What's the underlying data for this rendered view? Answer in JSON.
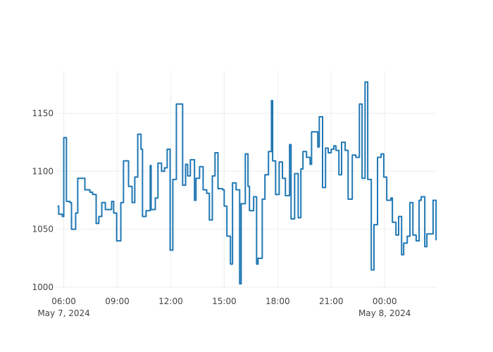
{
  "chart_data": {
    "type": "line",
    "line_shape": "step (hv)",
    "title": "",
    "xlabel": "",
    "ylabel": "",
    "x_origin": "2024-05-07 06:00",
    "x_unit": "minutes since origin",
    "x": [
      -21,
      -17,
      -5,
      0,
      9,
      21,
      26,
      40,
      47,
      71,
      88,
      97,
      109,
      118,
      128,
      140,
      161,
      168,
      178,
      192,
      201,
      218,
      230,
      239,
      249,
      260,
      265,
      277,
      291,
      294,
      308,
      317,
      329,
      339,
      348,
      358,
      367,
      379,
      400,
      410,
      417,
      426,
      440,
      445,
      457,
      469,
      481,
      490,
      500,
      509,
      519,
      535,
      540,
      549,
      561,
      568,
      580,
      592,
      597,
      611,
      620,
      625,
      639,
      649,
      654,
      668,
      677,
      689,
      699,
      703,
      713,
      725,
      736,
      746,
      760,
      765,
      777,
      789,
      798,
      805,
      817,
      829,
      834,
      855,
      860,
      871,
      881,
      890,
      900,
      909,
      916,
      926,
      935,
      947,
      957,
      971,
      983,
      995,
      1004,
      1014,
      1023,
      1035,
      1044,
      1056,
      1068,
      1077,
      1087,
      1101,
      1106,
      1118,
      1127,
      1137,
      1144,
      1156,
      1165,
      1175,
      1186,
      1196,
      1203,
      1215,
      1222,
      1243,
      1253
    ],
    "y": [
      1070,
      1063,
      1061,
      1129,
      1074,
      1073,
      1050,
      1064,
      1094,
      1084,
      1082,
      1080,
      1055,
      1061,
      1073,
      1067,
      1074,
      1064,
      1040,
      1073,
      1109,
      1087,
      1073,
      1095,
      1132,
      1119,
      1061,
      1066,
      1105,
      1067,
      1077,
      1107,
      1100,
      1103,
      1119,
      1032,
      1093,
      1158,
      1088,
      1106,
      1096,
      1110,
      1075,
      1094,
      1104,
      1084,
      1081,
      1058,
      1096,
      1116,
      1085,
      1084,
      1070,
      1044,
      1020,
      1090,
      1084,
      1003,
      1072,
      1115,
      1087,
      1066,
      1078,
      1020,
      1025,
      1076,
      1097,
      1117,
      1161,
      1109,
      1080,
      1108,
      1094,
      1079,
      1123,
      1059,
      1098,
      1060,
      1102,
      1117,
      1112,
      1106,
      1134,
      1121,
      1147,
      1086,
      1120,
      1116,
      1119,
      1122,
      1118,
      1097,
      1125,
      1118,
      1076,
      1114,
      1112,
      1158,
      1094,
      1177,
      1093,
      1015,
      1054,
      1112,
      1115,
      1095,
      1075,
      1077,
      1056,
      1045,
      1061,
      1028,
      1038,
      1044,
      1073,
      1045,
      1040,
      1075,
      1078,
      1035,
      1046,
      1075,
      1041
    ],
    "xlim_minutes": [
      -25,
      1255
    ],
    "ylim": [
      998.8,
      1187
    ],
    "yticks": [
      1000,
      1050,
      1100,
      1150
    ],
    "ytick_labels": [
      "1000",
      "1050",
      "1100",
      "1150"
    ],
    "xticks_minutes": [
      0,
      180,
      360,
      540,
      720,
      900,
      1080
    ],
    "xtick_labels": [
      "06:00",
      "09:00",
      "12:00",
      "15:00",
      "18:00",
      "21:00",
      "00:00"
    ],
    "xtick_date_labels": {
      "0": "May 7, 2024",
      "6": "May 8, 2024"
    },
    "grid": true,
    "line_color": "#1f77b4",
    "legend": "none"
  }
}
